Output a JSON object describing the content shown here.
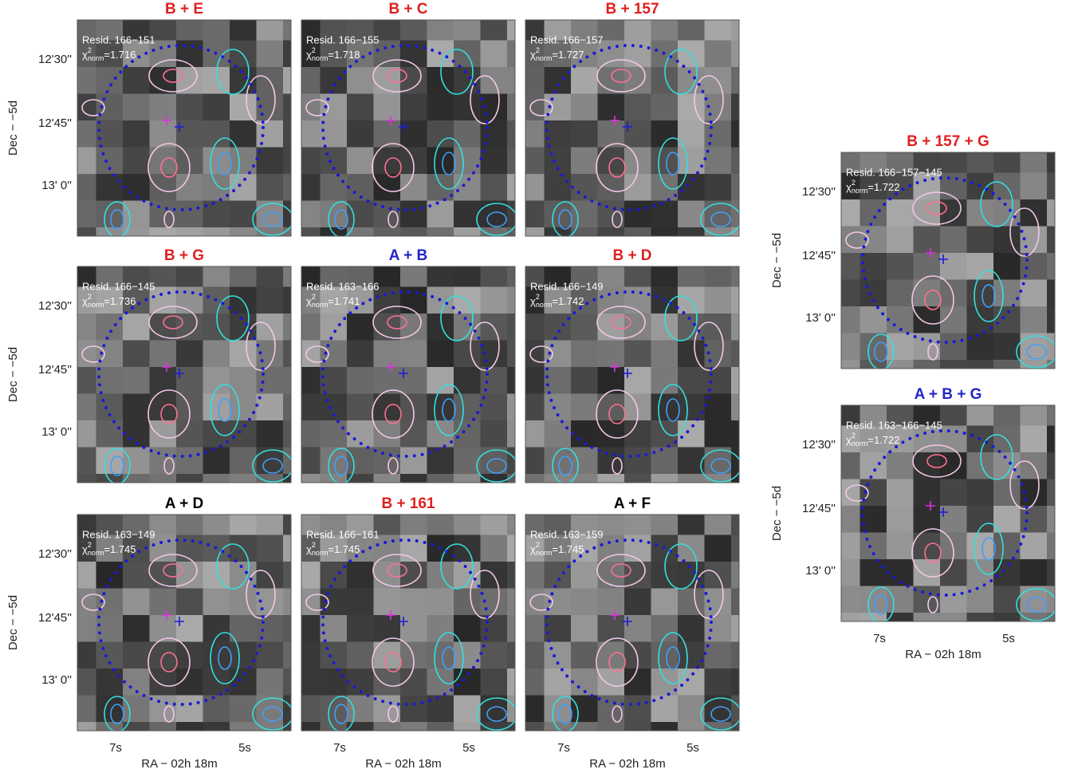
{
  "panels": [
    {
      "title": "B + E",
      "title_color": "#e0201f",
      "resid": "Resid. 166−151",
      "chi_value": "1.716"
    },
    {
      "title": "B + C",
      "title_color": "#e0201f",
      "resid": "Resid. 166−155",
      "chi_value": "1.718"
    },
    {
      "title": "B + 157",
      "title_color": "#e0201f",
      "resid": "Resid. 166−157",
      "chi_value": "1.727"
    },
    {
      "title": "B + G",
      "title_color": "#e0201f",
      "resid": "Resid. 166−145",
      "chi_value": "1.736"
    },
    {
      "title": "A + B",
      "title_color": "#2323c8",
      "resid": "Resid. 163−166",
      "chi_value": "1.741"
    },
    {
      "title": "B + D",
      "title_color": "#e0201f",
      "resid": "Resid. 166−149",
      "chi_value": "1.742"
    },
    {
      "title": "A + D",
      "title_color": "#000000",
      "resid": "Resid. 163−149",
      "chi_value": "1.745"
    },
    {
      "title": "B + 161",
      "title_color": "#e0201f",
      "resid": "Resid. 166−161",
      "chi_value": "1.745"
    },
    {
      "title": "A + F",
      "title_color": "#000000",
      "resid": "Resid. 163−159",
      "chi_value": "1.745"
    },
    {
      "title": "B + 157 + G",
      "title_color": "#e0201f",
      "resid": "Resid. 166−157−145",
      "chi_value": "1.722"
    },
    {
      "title": "A + B + G",
      "title_color": "#2323c8",
      "resid": "Resid. 163−166−145",
      "chi_value": "1.722"
    }
  ],
  "chi": {
    "symbol": "χ",
    "sup": "2",
    "sub": "norm",
    "equals": "="
  },
  "axes": {
    "y_label": "Dec  −  −5d",
    "y_ticks": [
      "12'30''",
      "12'45''",
      "13' 0''"
    ],
    "x_label": "RA  −  02h 18m",
    "x_ticks": [
      "7s",
      "5s"
    ]
  }
}
